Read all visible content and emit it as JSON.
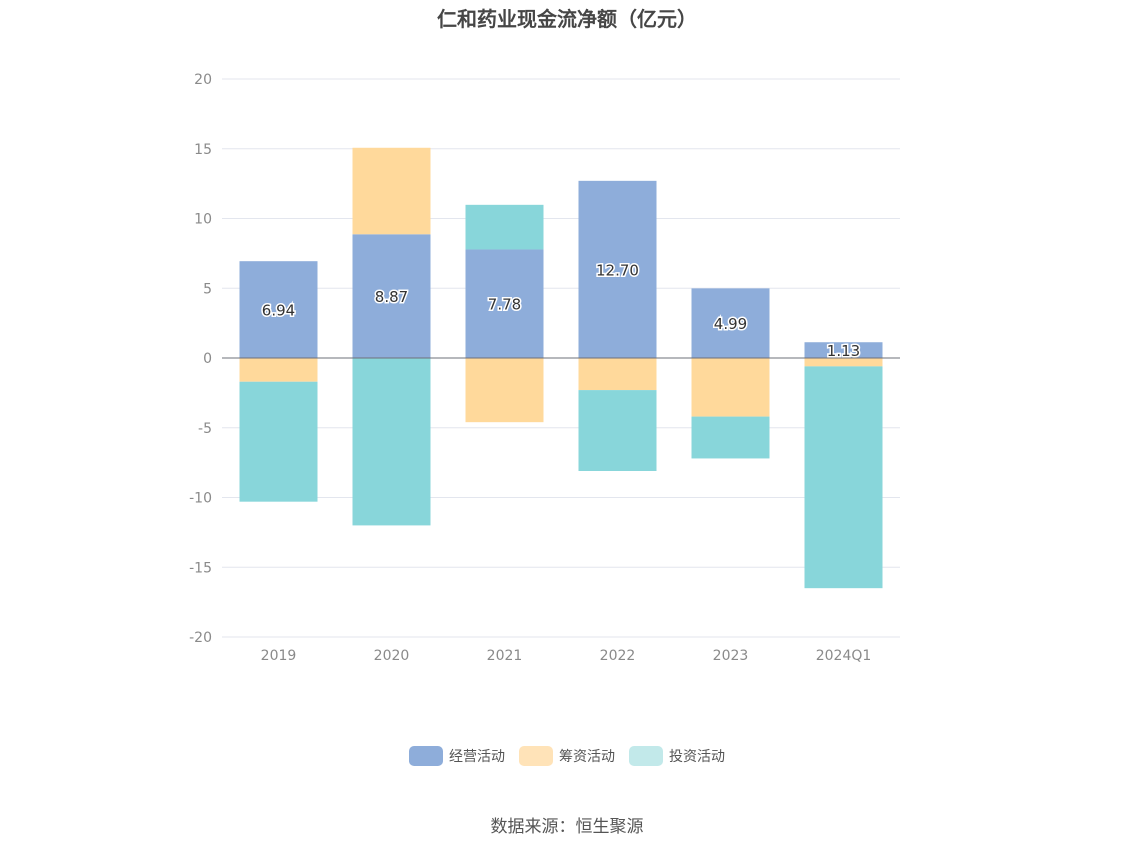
{
  "chart_data": {
    "type": "bar",
    "stacked": true,
    "title": "仁和药业现金流净额（亿元）",
    "categories": [
      "2019",
      "2020",
      "2021",
      "2022",
      "2023",
      "2024Q1"
    ],
    "series": [
      {
        "name": "经营活动",
        "color": "#8eadda",
        "values": [
          6.94,
          8.87,
          7.78,
          12.7,
          4.99,
          1.13
        ],
        "labels": [
          "6.94",
          "8.87",
          "7.78",
          "12.70",
          "4.99",
          "1.13"
        ]
      },
      {
        "name": "筹资活动",
        "color": "#ffd99b",
        "values": [
          -1.7,
          6.2,
          -4.6,
          -2.3,
          -4.2,
          -0.6
        ]
      },
      {
        "name": "投资活动",
        "color": "#88d6da",
        "values": [
          -8.6,
          -12.0,
          3.2,
          -5.8,
          -3.0,
          -15.9
        ]
      }
    ],
    "ylim": [
      -20,
      20
    ],
    "yticks": [
      "20",
      "15",
      "10",
      "5",
      "0",
      "-5",
      "-10",
      "-15",
      "-20"
    ],
    "legend_position": "bottom",
    "grid": true
  },
  "legend": [
    {
      "label": "经营活动",
      "color": "#8eadda"
    },
    {
      "label": "筹资活动",
      "color": "#ffe3b8"
    },
    {
      "label": "投资活动",
      "color": "#c2e9ea"
    }
  ],
  "source": "数据来源：恒生聚源"
}
